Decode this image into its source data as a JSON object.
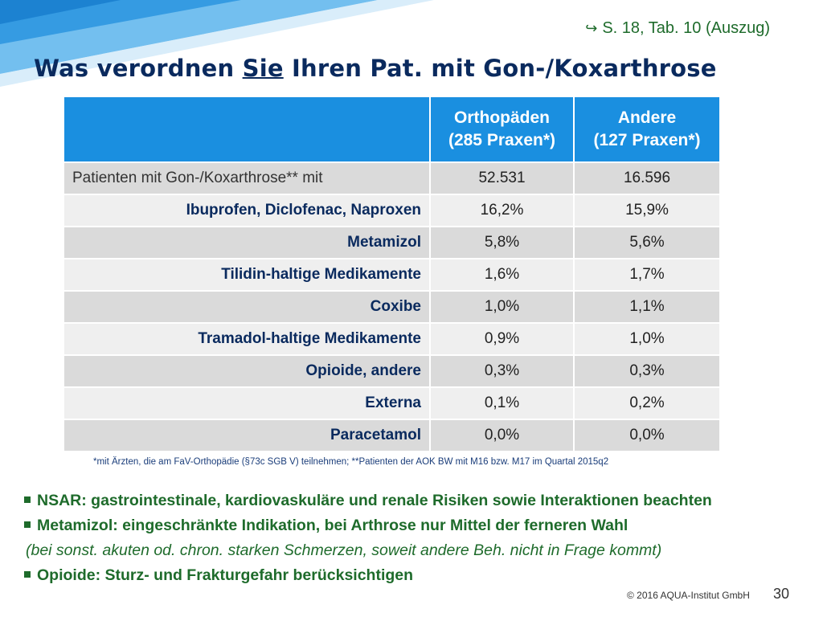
{
  "slide": {
    "reference": "S. 18, Tab. 10 (Auszug)",
    "reference_icon": "curved-arrow-icon",
    "title_before": "Was verordnen ",
    "title_emphasis": "Sie",
    "title_after": " Ihren Pat. mit Gon-/Koxarthrose",
    "accent_color": "#1a8fe0",
    "note_color": "#1e6b2b",
    "title_color": "#0a2a5e"
  },
  "table": {
    "headers": [
      {
        "line1": "",
        "line2": ""
      },
      {
        "line1": "Orthopäden",
        "line2": "(285 Praxen*)"
      },
      {
        "line1": "Andere",
        "line2": "(127 Praxen*)"
      }
    ],
    "rows": [
      {
        "label": "Patienten mit Gon-/Koxarthrose** mit",
        "ortho": "52.531",
        "andere": "16.596"
      },
      {
        "label": "Ibuprofen, Diclofenac, Naproxen",
        "ortho": "16,2%",
        "andere": "15,9%"
      },
      {
        "label": "Metamizol",
        "ortho": "5,8%",
        "andere": "5,6%"
      },
      {
        "label": "Tilidin-haltige Medikamente",
        "ortho": "1,6%",
        "andere": "1,7%"
      },
      {
        "label": "Coxibe",
        "ortho": "1,0%",
        "andere": "1,1%"
      },
      {
        "label": "Tramadol-haltige Medikamente",
        "ortho": "0,9%",
        "andere": "1,0%"
      },
      {
        "label": "Opioide, andere",
        "ortho": "0,3%",
        "andere": "0,3%"
      },
      {
        "label": "Externa",
        "ortho": "0,1%",
        "andere": "0,2%"
      },
      {
        "label": "Paracetamol",
        "ortho": "0,0%",
        "andere": "0,0%"
      }
    ]
  },
  "footnote": "*mit Ärzten, die am FaV-Orthopädie (§73c SGB V) teilnehmen; **Patienten der AOK BW mit M16 bzw. M17 im Quartal 2015q2",
  "notes": [
    {
      "text": "NSAR: gastrointestinale, kardiovaskuläre und renale Risiken sowie Interaktionen beachten",
      "style": "bullet"
    },
    {
      "text": "Metamizol: eingeschränkte Indikation, bei Arthrose nur Mittel der ferneren Wahl",
      "style": "bullet"
    },
    {
      "text": "(bei sonst. akuten od. chron. starken Schmerzen, soweit andere Beh. nicht in Frage kommt)",
      "style": "italic"
    },
    {
      "text": "Opioide: Sturz- und Frakturgefahr berücksichtigen",
      "style": "bullet"
    }
  ],
  "footer": {
    "copyright": "© 2016 AQUA-Institut GmbH",
    "page_number": "30"
  }
}
